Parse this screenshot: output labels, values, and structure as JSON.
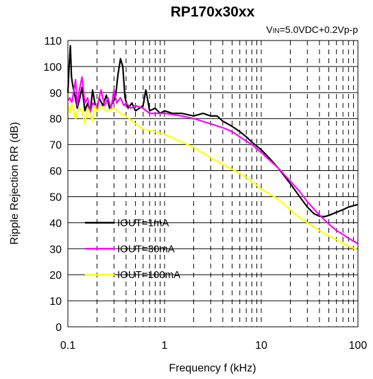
{
  "chart_data": {
    "type": "line",
    "title": "RP170x30xx",
    "subtitle": {
      "prefix": "V",
      "sub": "IN",
      "suffix": "=5.0VDC+0.2Vp-p"
    },
    "xlabel": "Frequency f (kHz)",
    "ylabel": "Ripple Rejection RR (dB)",
    "xscale": "log",
    "xlim": [
      0.1,
      100
    ],
    "ylim": [
      0,
      110
    ],
    "x_ticks": [
      0.1,
      1,
      10,
      100
    ],
    "x_tick_labels": [
      "0.1",
      "1",
      "10",
      "100"
    ],
    "y_ticks": [
      0,
      10,
      20,
      30,
      40,
      50,
      60,
      70,
      80,
      90,
      100,
      110
    ],
    "y_tick_labels": [
      "0",
      "10",
      "20",
      "30",
      "40",
      "50",
      "60",
      "70",
      "80",
      "90",
      "100",
      "110"
    ],
    "grid": {
      "horizontal": "solid",
      "vertical": "dashed"
    },
    "legend_position": "bottom-left",
    "series": [
      {
        "name": "IOUT=1mA",
        "color": "#000000",
        "points": [
          [
            0.1,
            90
          ],
          [
            0.103,
            100
          ],
          [
            0.106,
            108
          ],
          [
            0.109,
            96
          ],
          [
            0.112,
            93
          ],
          [
            0.118,
            89
          ],
          [
            0.125,
            84
          ],
          [
            0.133,
            88
          ],
          [
            0.14,
            92
          ],
          [
            0.15,
            83
          ],
          [
            0.16,
            86
          ],
          [
            0.17,
            82
          ],
          [
            0.18,
            91
          ],
          [
            0.19,
            86
          ],
          [
            0.2,
            83
          ],
          [
            0.21,
            88
          ],
          [
            0.23,
            85
          ],
          [
            0.25,
            89
          ],
          [
            0.27,
            84
          ],
          [
            0.29,
            86
          ],
          [
            0.31,
            88
          ],
          [
            0.33,
            97
          ],
          [
            0.35,
            103
          ],
          [
            0.37,
            100
          ],
          [
            0.39,
            88
          ],
          [
            0.42,
            84
          ],
          [
            0.46,
            86
          ],
          [
            0.5,
            83
          ],
          [
            0.55,
            84
          ],
          [
            0.6,
            85
          ],
          [
            0.64,
            91
          ],
          [
            0.67,
            87
          ],
          [
            0.7,
            83
          ],
          [
            0.8,
            84
          ],
          [
            0.9,
            82
          ],
          [
            1.0,
            83
          ],
          [
            1.2,
            82
          ],
          [
            1.5,
            82
          ],
          [
            2.0,
            81
          ],
          [
            2.5,
            82
          ],
          [
            3.0,
            81
          ],
          [
            3.5,
            81
          ],
          [
            4.0,
            79
          ],
          [
            5.0,
            77
          ],
          [
            6.0,
            75
          ],
          [
            7.0,
            73
          ],
          [
            8.0,
            71
          ],
          [
            10,
            68
          ],
          [
            12,
            65
          ],
          [
            15,
            61
          ],
          [
            20,
            55
          ],
          [
            25,
            50
          ],
          [
            30,
            46
          ],
          [
            35,
            43.5
          ],
          [
            40,
            42.5
          ],
          [
            45,
            42.3
          ],
          [
            50,
            42.8
          ],
          [
            60,
            44
          ],
          [
            70,
            45
          ],
          [
            80,
            46
          ],
          [
            100,
            47
          ]
        ]
      },
      {
        "name": "IOUT=30mA",
        "color": "#ff00ff",
        "points": [
          [
            0.1,
            87
          ],
          [
            0.105,
            88
          ],
          [
            0.11,
            86
          ],
          [
            0.12,
            95
          ],
          [
            0.125,
            85
          ],
          [
            0.13,
            90
          ],
          [
            0.14,
            96
          ],
          [
            0.15,
            86
          ],
          [
            0.16,
            88
          ],
          [
            0.17,
            82
          ],
          [
            0.18,
            86
          ],
          [
            0.2,
            84
          ],
          [
            0.22,
            91
          ],
          [
            0.24,
            85
          ],
          [
            0.26,
            88
          ],
          [
            0.28,
            84
          ],
          [
            0.3,
            91
          ],
          [
            0.32,
            86
          ],
          [
            0.35,
            88
          ],
          [
            0.38,
            85
          ],
          [
            0.4,
            86
          ],
          [
            0.45,
            84
          ],
          [
            0.5,
            85
          ],
          [
            0.6,
            84
          ],
          [
            0.7,
            82
          ],
          [
            0.8,
            82
          ],
          [
            1.0,
            82
          ],
          [
            1.5,
            81
          ],
          [
            2.0,
            80
          ],
          [
            3.0,
            78
          ],
          [
            4.0,
            76.5
          ],
          [
            5.0,
            75
          ],
          [
            6.0,
            73
          ],
          [
            8.0,
            70
          ],
          [
            10,
            67
          ],
          [
            15,
            61
          ],
          [
            20,
            56
          ],
          [
            25,
            52
          ],
          [
            30,
            48
          ],
          [
            40,
            43
          ],
          [
            50,
            39.5
          ],
          [
            60,
            37
          ],
          [
            70,
            35.5
          ],
          [
            80,
            34
          ],
          [
            100,
            32
          ]
        ]
      },
      {
        "name": "IOUT=100mA",
        "color": "#ffff00",
        "points": [
          [
            0.1,
            85
          ],
          [
            0.105,
            82
          ],
          [
            0.11,
            86
          ],
          [
            0.12,
            80
          ],
          [
            0.13,
            84
          ],
          [
            0.14,
            83
          ],
          [
            0.15,
            78
          ],
          [
            0.16,
            84
          ],
          [
            0.17,
            82
          ],
          [
            0.18,
            79
          ],
          [
            0.19,
            85
          ],
          [
            0.2,
            83
          ],
          [
            0.22,
            85
          ],
          [
            0.25,
            83
          ],
          [
            0.3,
            84
          ],
          [
            0.35,
            82
          ],
          [
            0.4,
            81
          ],
          [
            0.5,
            78
          ],
          [
            0.6,
            76
          ],
          [
            0.8,
            75
          ],
          [
            1.0,
            74
          ],
          [
            1.5,
            71
          ],
          [
            2.0,
            69
          ],
          [
            3.0,
            65
          ],
          [
            4.0,
            62.5
          ],
          [
            5.0,
            60.5
          ],
          [
            6.0,
            59
          ],
          [
            8.0,
            56
          ],
          [
            10,
            53
          ],
          [
            15,
            49
          ],
          [
            20,
            45
          ],
          [
            25,
            42
          ],
          [
            30,
            40
          ],
          [
            40,
            37
          ],
          [
            50,
            35
          ],
          [
            60,
            33.5
          ],
          [
            80,
            31
          ],
          [
            100,
            29.5
          ]
        ]
      }
    ]
  }
}
